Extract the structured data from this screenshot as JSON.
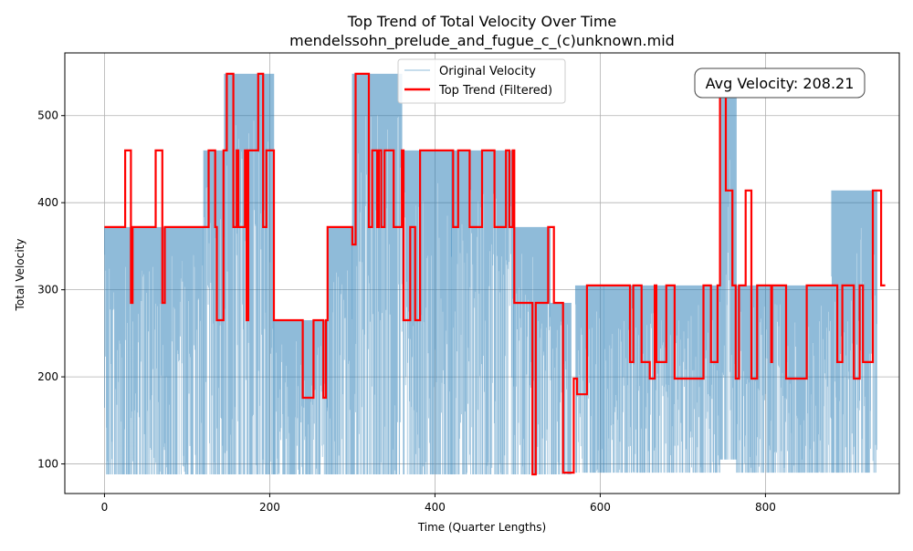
{
  "chart_data": {
    "type": "line",
    "title": "Top Trend of Total Velocity Over Time",
    "subtitle": "mendelssohn_prelude_and_fugue_c_(c)unknown.mid",
    "xlabel": "Time (Quarter Lengths)",
    "ylabel": "Total Velocity",
    "xlim": [
      -48,
      962
    ],
    "ylim": [
      66,
      572
    ],
    "xticks": [
      0,
      200,
      400,
      600,
      800
    ],
    "yticks": [
      100,
      200,
      300,
      400,
      500
    ],
    "grid": true,
    "legend_position": "upper-center",
    "annotation": "Avg Velocity: 208.21",
    "colors": {
      "original": "#1f77b4",
      "trend": "#ff0000"
    },
    "series": [
      {
        "name": "Original Velocity",
        "style": "thin-line",
        "segments": [
          {
            "x": [
              0,
              120
            ],
            "min": 88,
            "max": 372
          },
          {
            "x": [
              120,
              145
            ],
            "min": 88,
            "max": 460
          },
          {
            "x": [
              145,
              205
            ],
            "min": 88,
            "max": 548
          },
          {
            "x": [
              205,
              270
            ],
            "min": 88,
            "max": 265
          },
          {
            "x": [
              270,
              300
            ],
            "min": 88,
            "max": 372
          },
          {
            "x": [
              300,
              360
            ],
            "min": 88,
            "max": 548
          },
          {
            "x": [
              360,
              420
            ],
            "min": 88,
            "max": 460
          },
          {
            "x": [
              420,
              495
            ],
            "min": 88,
            "max": 460
          },
          {
            "x": [
              495,
              540
            ],
            "min": 88,
            "max": 372
          },
          {
            "x": [
              540,
              565
            ],
            "min": 88,
            "max": 285
          },
          {
            "x": [
              570,
              605
            ],
            "min": 90,
            "max": 305
          },
          {
            "x": [
              605,
              745
            ],
            "min": 90,
            "max": 305
          },
          {
            "x": [
              745,
              765
            ],
            "min": 105,
            "max": 522
          },
          {
            "x": [
              765,
              880
            ],
            "min": 90,
            "max": 305
          },
          {
            "x": [
              880,
              935
            ],
            "min": 90,
            "max": 414
          }
        ]
      },
      {
        "name": "Top Trend (Filtered)",
        "style": "thick-step",
        "x": [
          0,
          25,
          25,
          32,
          32,
          34,
          34,
          62,
          62,
          70,
          70,
          73,
          73,
          126,
          126,
          134,
          134,
          136,
          136,
          144,
          144,
          148,
          148,
          156,
          156,
          160,
          160,
          162,
          162,
          170,
          170,
          172,
          172,
          174,
          174,
          186,
          186,
          192,
          192,
          196,
          196,
          205,
          205,
          240,
          240,
          253,
          253,
          265,
          265,
          268,
          268,
          270,
          270,
          300,
          300,
          304,
          304,
          320,
          320,
          324,
          324,
          330,
          330,
          332,
          332,
          335,
          335,
          339,
          339,
          350,
          350,
          360,
          360,
          362,
          362,
          370,
          370,
          376,
          376,
          382,
          382,
          422,
          422,
          428,
          428,
          442,
          442,
          457,
          457,
          472,
          472,
          486,
          486,
          490,
          490,
          494,
          494,
          496,
          496,
          518,
          518,
          522,
          522,
          537,
          537,
          544,
          544,
          555,
          555,
          568,
          568,
          572,
          572,
          584,
          584,
          636,
          636,
          640,
          640,
          650,
          650,
          660,
          660,
          666,
          666,
          668,
          668,
          680,
          680,
          690,
          690,
          725,
          725,
          734,
          734,
          742,
          742,
          745,
          745,
          752,
          752,
          760,
          760,
          764,
          764,
          768,
          768,
          776,
          776,
          783,
          783,
          790,
          790,
          791,
          791,
          807,
          807,
          808,
          808,
          825,
          825,
          847,
          847,
          850,
          850,
          887,
          887,
          893,
          893,
          907,
          907,
          914,
          914,
          918,
          918,
          930,
          930,
          940,
          940,
          945
        ],
        "y": [
          372,
          372,
          460,
          460,
          285,
          285,
          372,
          372,
          460,
          460,
          285,
          285,
          372,
          372,
          460,
          460,
          372,
          372,
          265,
          265,
          460,
          460,
          548,
          548,
          372,
          372,
          460,
          460,
          372,
          372,
          460,
          460,
          265,
          265,
          460,
          460,
          548,
          548,
          372,
          372,
          460,
          460,
          265,
          265,
          176,
          176,
          265,
          265,
          176,
          176,
          265,
          265,
          372,
          372,
          352,
          352,
          548,
          548,
          372,
          372,
          460,
          460,
          372,
          372,
          460,
          460,
          372,
          372,
          460,
          460,
          372,
          372,
          460,
          460,
          265,
          265,
          372,
          372,
          265,
          265,
          460,
          460,
          372,
          372,
          460,
          460,
          372,
          372,
          460,
          460,
          372,
          372,
          460,
          460,
          372,
          372,
          460,
          460,
          285,
          285,
          88,
          88,
          285,
          285,
          372,
          372,
          285,
          285,
          90,
          90,
          198,
          198,
          180,
          180,
          305,
          305,
          217,
          217,
          305,
          305,
          217,
          217,
          198,
          198,
          305,
          305,
          217,
          217,
          305,
          305,
          198,
          198,
          305,
          305,
          217,
          217,
          305,
          305,
          522,
          522,
          414,
          414,
          305,
          305,
          198,
          198,
          305,
          305,
          414,
          414,
          198,
          198,
          305,
          305,
          305,
          305,
          217,
          217,
          305,
          305,
          198,
          198,
          198,
          198,
          305,
          305,
          217,
          217,
          305,
          305,
          198,
          198,
          305,
          305,
          217,
          217,
          414,
          414,
          305,
          305
        ]
      }
    ]
  }
}
